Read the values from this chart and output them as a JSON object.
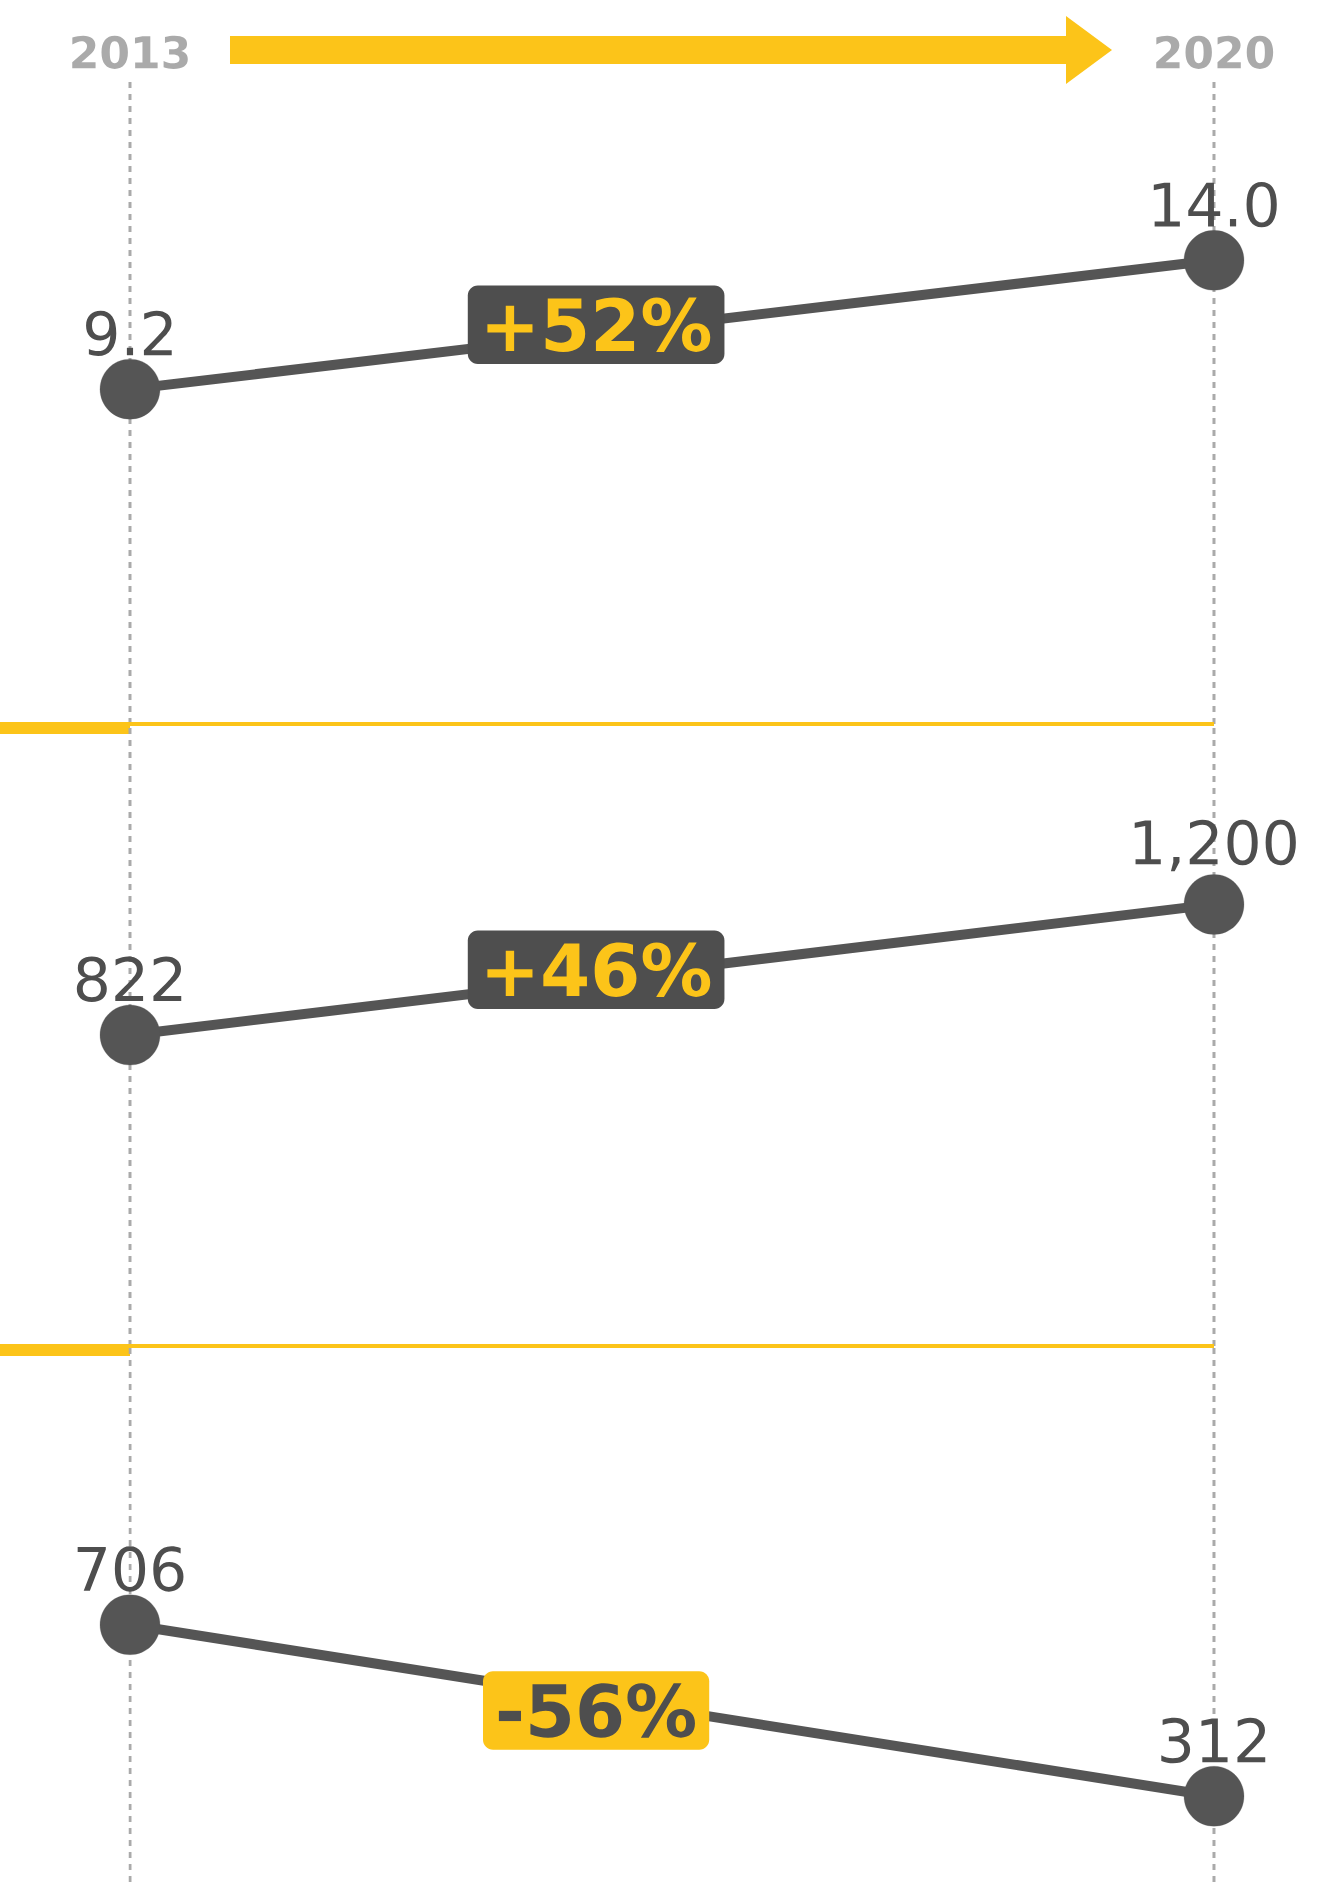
{
  "chart_data": [
    {
      "type": "line",
      "categories": [
        "2013",
        "2020"
      ],
      "series": [
        {
          "color": "#555555",
          "values": [
            9.2,
            14.0
          ],
          "value_labels": [
            "9.2",
            "14.0"
          ]
        }
      ],
      "annotations": [
        "+52%"
      ],
      "grid": "x",
      "marker": "circle",
      "tick_labels": "x"
    },
    {
      "type": "line",
      "categories": [
        null,
        null
      ],
      "series": [
        {
          "color": "#555555",
          "values": [
            822,
            1200
          ],
          "value_labels": [
            "822",
            "1,200"
          ]
        }
      ],
      "annotations": [
        "+46%"
      ],
      "grid": "x",
      "marker": "circle",
      "tick_labels": false
    },
    {
      "type": "line",
      "categories": [
        null,
        null
      ],
      "series": [
        {
          "color": "#555555",
          "values": [
            706,
            312
          ],
          "value_labels": [
            "706",
            "312"
          ]
        }
      ],
      "annotations": [
        "-56%"
      ],
      "grid": "x",
      "marker": "circle",
      "tick_labels": false
    }
  ]
}
